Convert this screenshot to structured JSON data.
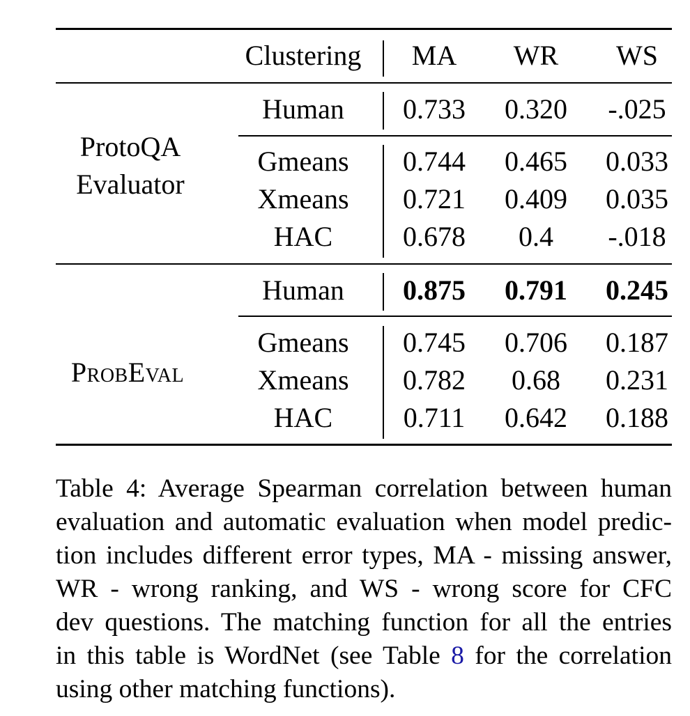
{
  "table": {
    "header": {
      "clustering": "Clustering",
      "ma": "MA",
      "wr": "WR",
      "ws": "WS"
    },
    "groups": [
      {
        "label_line1": "ProtoQA",
        "label_line2": "Evaluator",
        "human": {
          "clustering": "Human",
          "ma": "0.733",
          "wr": "0.320",
          "ws": "-.025"
        },
        "rows": [
          {
            "clustering": "Gmeans",
            "ma": "0.744",
            "wr": "0.465",
            "ws": "0.033"
          },
          {
            "clustering": "Xmeans",
            "ma": "0.721",
            "wr": "0.409",
            "ws": "0.035"
          },
          {
            "clustering": "HAC",
            "ma": "0.678",
            "wr": "0.4",
            "ws": "-.018"
          }
        ]
      },
      {
        "label": "ProbEval",
        "human": {
          "clustering": "Human",
          "ma": "0.875",
          "wr": "0.791",
          "ws": "0.245"
        },
        "rows": [
          {
            "clustering": "Gmeans",
            "ma": "0.745",
            "wr": "0.706",
            "ws": "0.187"
          },
          {
            "clustering": "Xmeans",
            "ma": "0.782",
            "wr": "0.68",
            "ws": "0.231"
          },
          {
            "clustering": "HAC",
            "ma": "0.711",
            "wr": "0.642",
            "ws": "0.188"
          }
        ]
      }
    ]
  },
  "caption": {
    "line1": "Table 4: Average Spearman correlation between human",
    "line2": "evaluation and automatic evaluation when model predic-",
    "line3": "tion includes different error types, MA - missing answer,",
    "line4": "WR - wrong ranking, and WS - wrong score for CFC",
    "line5": "dev questions. The matching function for all the entries",
    "line6_a": "in this table is WordNet (see Table ",
    "line6_ref": "8",
    "line6_b": " for the correlation",
    "line7": "using other matching functions)."
  }
}
